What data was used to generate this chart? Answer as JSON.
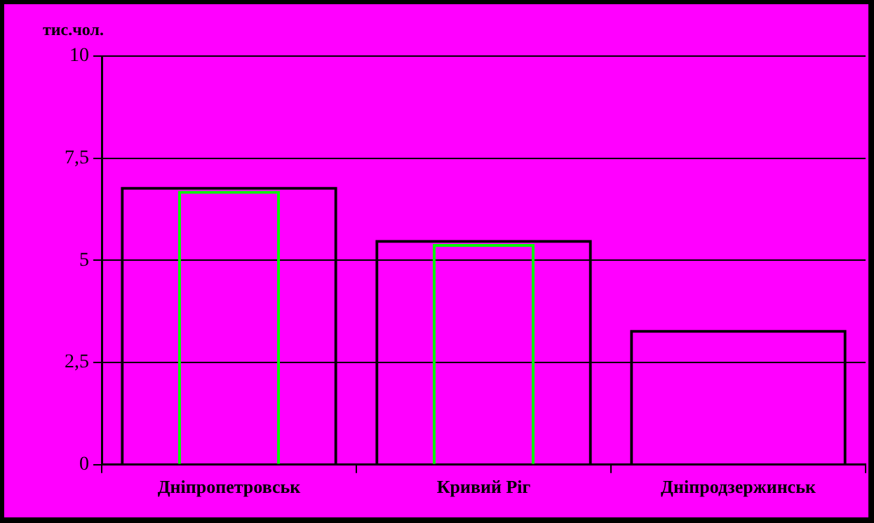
{
  "chart_data": {
    "type": "bar",
    "ylabel": "тис.чол.",
    "categories": [
      "Дніпропетровськ",
      "Кривий Ріг",
      "Дніпродзержинськ"
    ],
    "series": [
      {
        "color": "#000000",
        "values": [
          6.8,
          5.5,
          3.3
        ]
      },
      {
        "color": "#00ff00",
        "values": [
          6.7,
          5.4,
          null
        ]
      }
    ],
    "ylim": [
      0,
      10
    ],
    "yticks": [
      0,
      {
        "value": 2.5,
        "label": "2,5"
      },
      5,
      {
        "value": 7.5,
        "label": "7,5"
      },
      10
    ],
    "grid": "y",
    "legend": false
  }
}
